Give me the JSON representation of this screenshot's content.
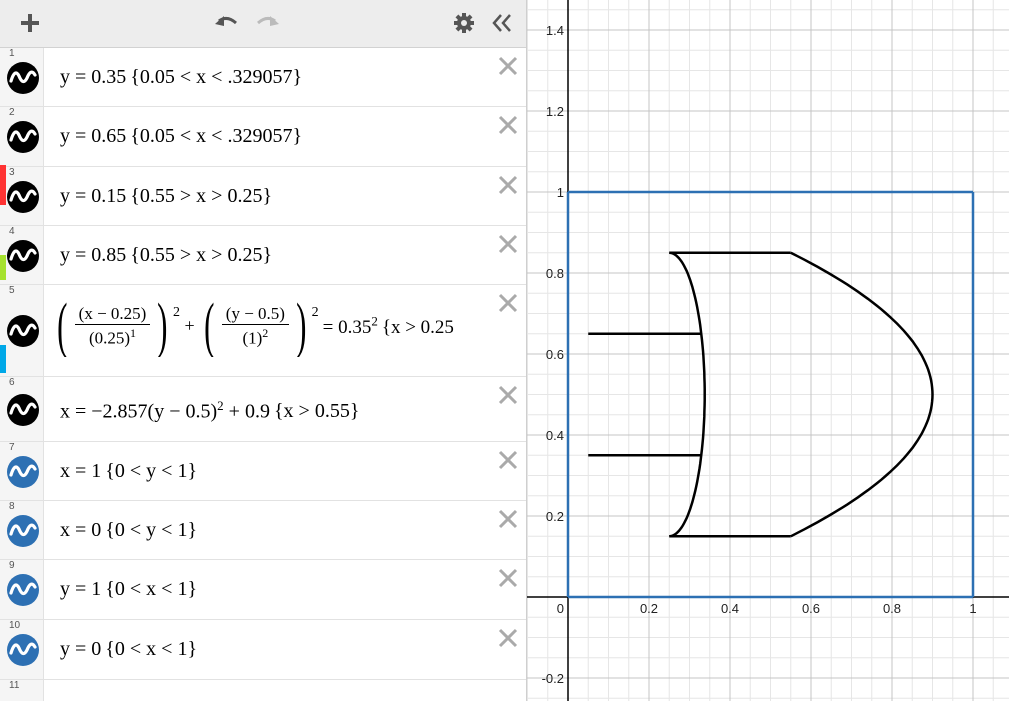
{
  "toolbar": {
    "add_icon": "plus-icon",
    "undo_icon": "undo-icon",
    "redo_icon": "redo-icon",
    "settings_icon": "gear-icon",
    "collapse_icon": "double-chevron-left-icon"
  },
  "expressions": [
    {
      "num": "1",
      "pre": "y = 0.35",
      "cond": "0.05 < x < .329057",
      "color": "#000000"
    },
    {
      "num": "2",
      "pre": "y = 0.65",
      "cond": "0.05 < x < .329057",
      "color": "#000000"
    },
    {
      "num": "3",
      "pre": "y = 0.15",
      "cond": "0.55 > x > 0.25",
      "color": "#000000"
    },
    {
      "num": "4",
      "pre": "y = 0.85",
      "cond": "0.55 > x > 0.25",
      "color": "#000000"
    },
    {
      "num": "5",
      "f1n": "(x − 0.25)",
      "f1d": "(0.25)",
      "f1e": "1",
      "f2n": "(y − 0.5)",
      "f2d": "(1)",
      "f2e": "2",
      "sq": "2",
      "rhs": "= 0.35",
      "rhs_exp": "2",
      "cond": "x > 0.25",
      "color": "#000000"
    },
    {
      "num": "6",
      "pre": "x = −2.857(y − 0.5)",
      "exp": "2",
      "post": " + 0.9",
      "cond": "x > 0.55",
      "color": "#000000"
    },
    {
      "num": "7",
      "pre": "x = 1",
      "cond": "0 < y < 1",
      "color": "#2d70b3"
    },
    {
      "num": "8",
      "pre": "x = 0",
      "cond": "0 < y < 1",
      "color": "#2d70b3"
    },
    {
      "num": "9",
      "pre": "y = 1",
      "cond": "0 < x < 1",
      "color": "#2d70b3"
    },
    {
      "num": "10",
      "pre": "y = 0",
      "cond": "0 < x < 1",
      "color": "#2d70b3"
    },
    {
      "num": "11"
    }
  ],
  "graph": {
    "x_ticks": [
      "0",
      "0.2",
      "0.4",
      "0.6",
      "0.8",
      "1"
    ],
    "y_ticks": [
      "1.4",
      "1.2",
      "1",
      "0.8",
      "0.6",
      "0.4",
      "0.2",
      "-0.2"
    ],
    "x_tick_values": [
      0,
      0.2,
      0.4,
      0.6,
      0.8,
      1
    ],
    "y_tick_values": [
      1.4,
      1.2,
      1,
      0.8,
      0.6,
      0.4,
      0.2,
      -0.2
    ],
    "curve_color": "#000000",
    "box_color": "#2d70b3",
    "grid_minor": "#e6e6e6",
    "grid_major": "#c4c4c4"
  },
  "side_strip_colors": [
    "#000000",
    "#ff3333",
    "#a6e22e",
    "#00a8e8",
    "#000000"
  ]
}
